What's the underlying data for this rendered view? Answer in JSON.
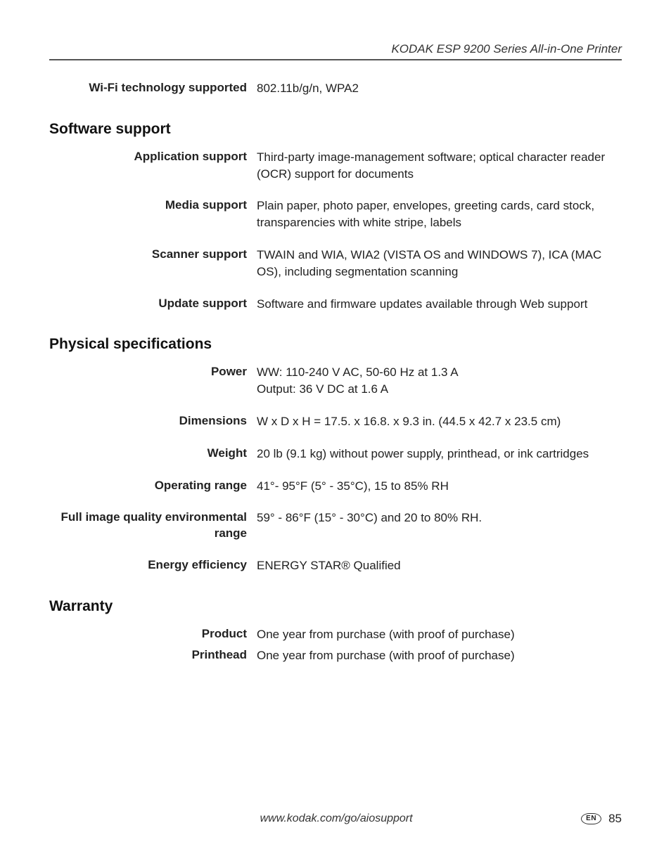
{
  "header": {
    "title": "KODAK ESP 9200 Series All-in-One Printer"
  },
  "top_row": {
    "label": "Wi-Fi technology supported",
    "value": "802.11b/g/n, WPA2"
  },
  "sections": [
    {
      "heading": "Software support",
      "rows": [
        {
          "label": "Application support",
          "value": "Third-party image-management software; optical character reader (OCR) support for documents"
        },
        {
          "label": "Media support",
          "value": "Plain paper, photo paper, envelopes, greeting cards, card stock, transparencies with white stripe, labels"
        },
        {
          "label": "Scanner support",
          "value": "TWAIN and WIA, WIA2 (VISTA OS and WINDOWS 7), ICA (MAC OS), including segmentation scanning"
        },
        {
          "label": "Update support",
          "value": "Software and firmware updates available through Web support"
        }
      ]
    },
    {
      "heading": "Physical specifications",
      "rows": [
        {
          "label": "Power",
          "value": "WW: 110-240 V AC, 50-60 Hz at 1.3 A\nOutput: 36 V DC at 1.6 A"
        },
        {
          "label": "Dimensions",
          "value": "W x D x H = 17.5. x 16.8. x 9.3 in. (44.5 x 42.7 x 23.5 cm)"
        },
        {
          "label": "Weight",
          "value": "20 lb (9.1 kg) without power supply, printhead, or ink cartridges"
        },
        {
          "label": "Operating range",
          "value": "41°- 95°F (5° - 35°C), 15 to 85% RH"
        },
        {
          "label": "Full image quality environmental range",
          "value": "59° - 86°F (15° - 30°C) and 20 to 80% RH."
        },
        {
          "label": "Energy efficiency",
          "value": "ENERGY STAR® Qualified"
        }
      ]
    },
    {
      "heading": "Warranty",
      "rows": [
        {
          "label": "Product",
          "value": "One year from purchase (with proof of purchase)",
          "tight": true
        },
        {
          "label": "Printhead",
          "value": "One year from purchase (with proof of purchase)",
          "tight": true
        }
      ]
    }
  ],
  "footer": {
    "url": "www.kodak.com/go/aiosupport",
    "lang": "EN",
    "page": "85"
  },
  "style": {
    "body_font_size": 17,
    "heading_font_size": 21,
    "header_rule_color": "#555555",
    "text_color": "#222222",
    "background_color": "#ffffff"
  }
}
